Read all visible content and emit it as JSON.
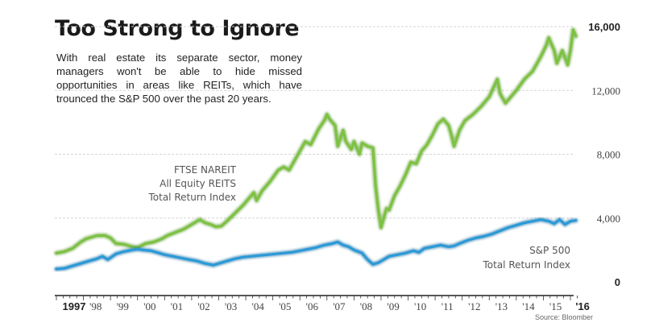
{
  "chart_data": {
    "type": "line",
    "title": "Too Strong to Ignore",
    "subtitle": "With real estate its separate sector, money managers won't be able to hide missed opportunities in areas like REITs, which have trounced the S&P 500 over the past 20 years.",
    "xlabel": "",
    "ylabel": "",
    "xlim": [
      1997,
      2016.3
    ],
    "ylim": [
      0,
      16000
    ],
    "grid": true,
    "y_ticks": [
      {
        "value": 16000,
        "label": "16,000",
        "bold": true
      },
      {
        "value": 12000,
        "label": "12,000",
        "bold": false
      },
      {
        "value": 8000,
        "label": "8,000",
        "bold": false
      },
      {
        "value": 4000,
        "label": "4,000",
        "bold": false
      },
      {
        "value": 0,
        "label": "0",
        "bold": true
      }
    ],
    "x_ticks": [
      {
        "value": 1997,
        "label": "1997",
        "bold": true
      },
      {
        "value": 1998,
        "label": "'98",
        "bold": false
      },
      {
        "value": 1999,
        "label": "'99",
        "bold": false
      },
      {
        "value": 2000,
        "label": "'00",
        "bold": false
      },
      {
        "value": 2001,
        "label": "'01",
        "bold": false
      },
      {
        "value": 2002,
        "label": "'02",
        "bold": false
      },
      {
        "value": 2003,
        "label": "'03",
        "bold": false
      },
      {
        "value": 2004,
        "label": "'04",
        "bold": false
      },
      {
        "value": 2005,
        "label": "'05",
        "bold": false
      },
      {
        "value": 2006,
        "label": "'06",
        "bold": false
      },
      {
        "value": 2007,
        "label": "'07",
        "bold": false
      },
      {
        "value": 2008,
        "label": "'08",
        "bold": false
      },
      {
        "value": 2009,
        "label": "'09",
        "bold": false
      },
      {
        "value": 2010,
        "label": "'10",
        "bold": false
      },
      {
        "value": 2011,
        "label": "'11",
        "bold": false
      },
      {
        "value": 2012,
        "label": "'12",
        "bold": false
      },
      {
        "value": 2013,
        "label": "'13",
        "bold": false
      },
      {
        "value": 2014,
        "label": "'14",
        "bold": false
      },
      {
        "value": 2015,
        "label": "'15",
        "bold": false
      },
      {
        "value": 2016,
        "label": "'16",
        "bold": true
      }
    ],
    "series": [
      {
        "name": "FTSE NAREIT All Equity REITS Total Return Index",
        "label_lines": [
          "FTSE NAREIT",
          "All Equity REITS",
          "Total Return Index"
        ],
        "color": "#7dc242",
        "x": [
          1997.0,
          1997.3,
          1997.6,
          1997.9,
          1998.1,
          1998.3,
          1998.5,
          1998.8,
          1999.0,
          1999.2,
          1999.5,
          1999.8,
          2000.0,
          2000.3,
          2000.6,
          2000.9,
          2001.1,
          2001.4,
          2001.7,
          2002.0,
          2002.3,
          2002.5,
          2002.7,
          2002.9,
          2003.1,
          2003.3,
          2003.6,
          2003.9,
          2004.1,
          2004.3,
          2004.4,
          2004.6,
          2004.9,
          2005.2,
          2005.4,
          2005.6,
          2005.9,
          2006.2,
          2006.4,
          2006.7,
          2006.9,
          2007.0,
          2007.1,
          2007.3,
          2007.4,
          2007.6,
          2007.7,
          2007.9,
          2008.0,
          2008.2,
          2008.3,
          2008.5,
          2008.7,
          2008.8,
          2008.9,
          2009.0,
          2009.1,
          2009.2,
          2009.3,
          2009.5,
          2009.7,
          2009.9,
          2010.1,
          2010.3,
          2010.5,
          2010.7,
          2010.9,
          2011.1,
          2011.3,
          2011.5,
          2011.6,
          2011.7,
          2011.9,
          2012.1,
          2012.4,
          2012.7,
          2013.0,
          2013.3,
          2013.4,
          2013.6,
          2013.8,
          2014.0,
          2014.3,
          2014.6,
          2014.9,
          2015.1,
          2015.2,
          2015.4,
          2015.5,
          2015.7,
          2015.9,
          2016.0,
          2016.1,
          2016.2
        ],
        "values": [
          1800,
          1900,
          2100,
          2500,
          2700,
          2800,
          2900,
          2900,
          2750,
          2400,
          2350,
          2200,
          2150,
          2400,
          2500,
          2700,
          2900,
          3100,
          3300,
          3600,
          3900,
          3700,
          3600,
          3450,
          3500,
          3800,
          4300,
          4800,
          5200,
          5600,
          5100,
          5700,
          6300,
          7000,
          7200,
          7000,
          7900,
          8800,
          8600,
          9600,
          10100,
          10500,
          10200,
          9800,
          8500,
          9500,
          8800,
          8300,
          8800,
          8000,
          8700,
          8500,
          8400,
          6000,
          4500,
          3400,
          4000,
          4600,
          4500,
          5400,
          6000,
          6700,
          7500,
          7400,
          8200,
          8600,
          9200,
          9900,
          10200,
          9800,
          9200,
          8500,
          9500,
          10100,
          10500,
          11000,
          11600,
          12700,
          11800,
          11200,
          11600,
          12000,
          12700,
          13200,
          14100,
          14800,
          15300,
          14500,
          13700,
          14500,
          13600,
          14500,
          15800,
          15400
        ]
      },
      {
        "name": "S&P 500 Total Return Index",
        "label_lines": [
          "S&P 500",
          "Total Return Index"
        ],
        "color": "#2c9ad8",
        "x": [
          1997.0,
          1997.3,
          1997.6,
          1997.9,
          1998.2,
          1998.5,
          1998.7,
          1998.9,
          1999.2,
          1999.5,
          1999.8,
          2000.0,
          2000.2,
          2000.5,
          2000.8,
          2001.0,
          2001.3,
          2001.6,
          2001.9,
          2002.2,
          2002.5,
          2002.8,
          2003.0,
          2003.3,
          2003.6,
          2003.9,
          2004.2,
          2004.5,
          2004.8,
          2005.1,
          2005.4,
          2005.7,
          2006.0,
          2006.3,
          2006.6,
          2006.9,
          2007.2,
          2007.4,
          2007.6,
          2007.8,
          2008.0,
          2008.3,
          2008.5,
          2008.7,
          2008.9,
          2009.1,
          2009.3,
          2009.6,
          2009.9,
          2010.2,
          2010.4,
          2010.6,
          2010.9,
          2011.2,
          2011.5,
          2011.7,
          2011.9,
          2012.2,
          2012.5,
          2012.8,
          2013.1,
          2013.4,
          2013.7,
          2014.0,
          2014.3,
          2014.6,
          2014.9,
          2015.2,
          2015.4,
          2015.6,
          2015.8,
          2016.0,
          2016.2
        ],
        "values": [
          800,
          850,
          1000,
          1150,
          1300,
          1450,
          1600,
          1400,
          1750,
          1900,
          2000,
          2050,
          2000,
          1950,
          1800,
          1700,
          1600,
          1500,
          1400,
          1300,
          1150,
          1050,
          1150,
          1300,
          1450,
          1550,
          1600,
          1650,
          1700,
          1750,
          1800,
          1850,
          1950,
          2050,
          2150,
          2300,
          2400,
          2500,
          2300,
          2200,
          2000,
          1800,
          1400,
          1100,
          1200,
          1400,
          1600,
          1700,
          1800,
          1950,
          1850,
          2100,
          2200,
          2300,
          2200,
          2250,
          2400,
          2600,
          2750,
          2850,
          3000,
          3200,
          3400,
          3550,
          3700,
          3800,
          3900,
          3800,
          3650,
          3900,
          3600,
          3800,
          3850
        ]
      }
    ],
    "source": "Source: Bloomber"
  }
}
